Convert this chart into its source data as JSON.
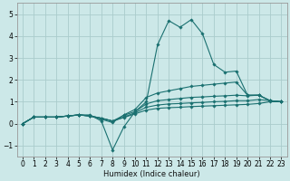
{
  "title": "",
  "xlabel": "Humidex (Indice chaleur)",
  "bg_color": "#cce8e8",
  "grid_color": "#aacccc",
  "line_color": "#1a7070",
  "xlim": [
    -0.5,
    23.5
  ],
  "ylim": [
    -1.5,
    5.5
  ],
  "xticks": [
    0,
    1,
    2,
    3,
    4,
    5,
    6,
    7,
    8,
    9,
    10,
    11,
    12,
    13,
    14,
    15,
    16,
    17,
    18,
    19,
    20,
    21,
    22,
    23
  ],
  "yticks": [
    -1,
    0,
    1,
    2,
    3,
    4,
    5
  ],
  "series": [
    [
      0,
      0.3,
      0.3,
      0.3,
      0.35,
      0.4,
      0.4,
      0.12,
      -1.2,
      -0.15,
      0.55,
      1.0,
      3.6,
      4.7,
      4.4,
      4.75,
      4.1,
      2.7,
      2.35,
      2.4,
      1.3,
      1.3,
      1.05,
      1.0
    ],
    [
      0,
      0.3,
      0.3,
      0.3,
      0.35,
      0.4,
      0.35,
      0.2,
      0.05,
      0.4,
      0.65,
      1.2,
      1.4,
      1.5,
      1.6,
      1.7,
      1.75,
      1.8,
      1.85,
      1.9,
      1.3,
      1.3,
      1.05,
      1.0
    ],
    [
      0,
      0.3,
      0.3,
      0.3,
      0.35,
      0.4,
      0.35,
      0.25,
      0.12,
      0.38,
      0.55,
      0.9,
      1.05,
      1.1,
      1.15,
      1.2,
      1.22,
      1.25,
      1.27,
      1.3,
      1.27,
      1.3,
      1.05,
      1.0
    ],
    [
      0,
      0.3,
      0.3,
      0.3,
      0.35,
      0.4,
      0.35,
      0.25,
      0.12,
      0.3,
      0.5,
      0.75,
      0.85,
      0.9,
      0.92,
      0.95,
      0.97,
      1.0,
      1.02,
      1.05,
      1.05,
      1.1,
      1.05,
      1.0
    ],
    [
      0,
      0.3,
      0.3,
      0.3,
      0.35,
      0.4,
      0.35,
      0.25,
      0.12,
      0.28,
      0.45,
      0.62,
      0.7,
      0.73,
      0.75,
      0.78,
      0.8,
      0.82,
      0.84,
      0.86,
      0.88,
      0.92,
      1.0,
      1.0
    ]
  ]
}
